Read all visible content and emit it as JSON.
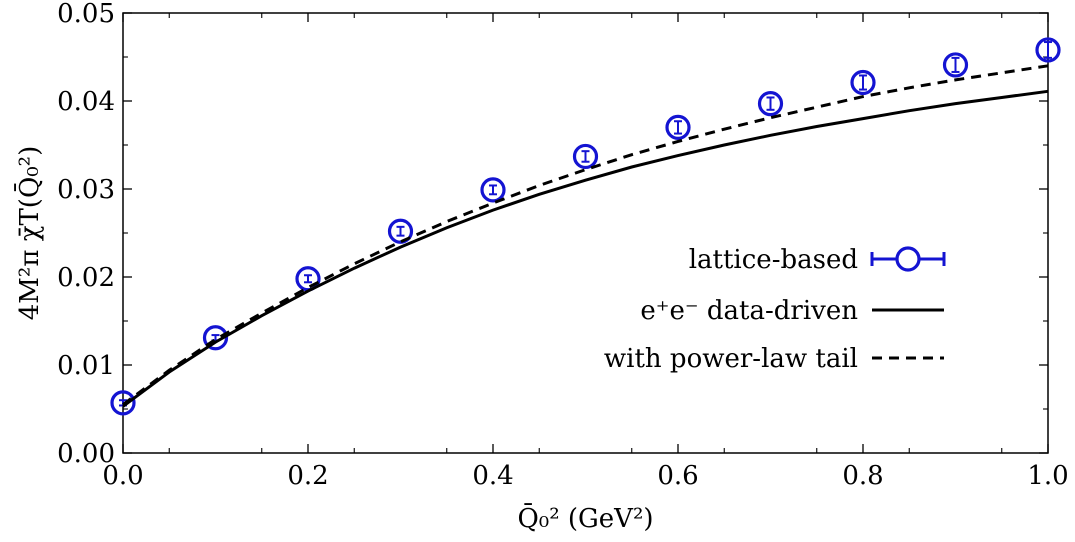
{
  "chart_data": {
    "type": "line",
    "xlabel": "Q̄₀² (GeV²)",
    "ylabel": "4M²π χ̄T(Q̄₀²)",
    "xlim": [
      0.0,
      1.0
    ],
    "ylim": [
      0.0,
      0.05
    ],
    "x_ticks": [
      0.0,
      0.2,
      0.4,
      0.6,
      0.8,
      1.0
    ],
    "x_tick_labels": [
      "0.0",
      "0.2",
      "0.4",
      "0.6",
      "0.8",
      "1.0"
    ],
    "y_ticks": [
      0.0,
      0.01,
      0.02,
      0.03,
      0.04,
      0.05
    ],
    "y_tick_labels": [
      "0.00",
      "0.01",
      "0.02",
      "0.03",
      "0.04",
      "0.05"
    ],
    "grid": false,
    "legend_position": "right",
    "series": [
      {
        "name": "lattice-based",
        "kind": "points-with-errorbars",
        "color": "#1414d2",
        "x": [
          0.0,
          0.1,
          0.2,
          0.3,
          0.4,
          0.5,
          0.6,
          0.7,
          0.8,
          0.9,
          1.0
        ],
        "y": [
          0.0057,
          0.0131,
          0.0198,
          0.0252,
          0.0299,
          0.0337,
          0.037,
          0.0397,
          0.0421,
          0.0441,
          0.0458
        ],
        "yerr": [
          0.0003,
          0.0003,
          0.0004,
          0.0005,
          0.0005,
          0.0006,
          0.0007,
          0.0007,
          0.0008,
          0.0008,
          0.0009
        ]
      },
      {
        "name": "e⁺e⁻ data-driven",
        "kind": "solid-line",
        "color": "#000000",
        "x": [
          0.0,
          0.05,
          0.1,
          0.15,
          0.2,
          0.25,
          0.3,
          0.35,
          0.4,
          0.45,
          0.5,
          0.55,
          0.6,
          0.65,
          0.7,
          0.75,
          0.8,
          0.85,
          0.9,
          0.95,
          1.0
        ],
        "y": [
          0.0053,
          0.0092,
          0.0126,
          0.0156,
          0.0184,
          0.021,
          0.0234,
          0.0256,
          0.0276,
          0.0294,
          0.031,
          0.0325,
          0.0338,
          0.035,
          0.0361,
          0.0371,
          0.038,
          0.0389,
          0.0397,
          0.0404,
          0.0411
        ]
      },
      {
        "name": "with power-law tail",
        "kind": "dashed-line",
        "color": "#000000",
        "x": [
          0.0,
          0.05,
          0.1,
          0.15,
          0.2,
          0.25,
          0.3,
          0.35,
          0.4,
          0.45,
          0.5,
          0.55,
          0.6,
          0.65,
          0.7,
          0.75,
          0.8,
          0.85,
          0.9,
          0.95,
          1.0
        ],
        "y": [
          0.0055,
          0.0094,
          0.0129,
          0.0159,
          0.0188,
          0.0215,
          0.024,
          0.0263,
          0.0284,
          0.0304,
          0.0322,
          0.0339,
          0.0354,
          0.0368,
          0.0381,
          0.0393,
          0.0405,
          0.0415,
          0.0424,
          0.0432,
          0.044
        ]
      }
    ]
  }
}
